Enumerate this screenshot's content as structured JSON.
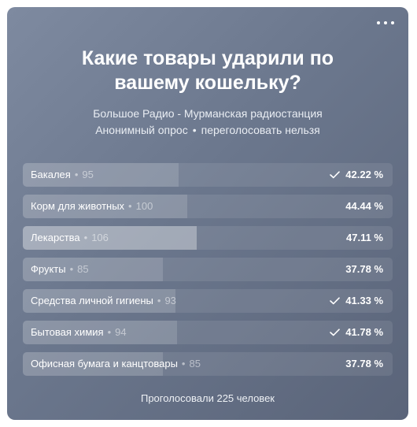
{
  "poll": {
    "title_line1": "Какие товары ударили по",
    "title_line2": "вашему кошельку?",
    "author": "Большое Радио - Мурманская радиостанция",
    "type": "Анонимный опрос",
    "revote": "переголосовать нельзя",
    "meta_separator": "•",
    "total_votes": "Проголосовали 225 человек",
    "options": [
      {
        "label": "Бакалея",
        "count": "95",
        "percent": "42.22 %",
        "share": 0.4222,
        "voted": true,
        "leader": false
      },
      {
        "label": "Корм для животных",
        "count": "100",
        "percent": "44.44 %",
        "share": 0.4444,
        "voted": false,
        "leader": false
      },
      {
        "label": "Лекарства",
        "count": "106",
        "percent": "47.11 %",
        "share": 0.4711,
        "voted": false,
        "leader": true
      },
      {
        "label": "Фрукты",
        "count": "85",
        "percent": "37.78 %",
        "share": 0.3778,
        "voted": false,
        "leader": false
      },
      {
        "label": "Средства личной гигиены",
        "count": "93",
        "percent": "41.33 %",
        "share": 0.4133,
        "voted": true,
        "leader": false
      },
      {
        "label": "Бытовая химия",
        "count": "94",
        "percent": "41.78 %",
        "share": 0.4178,
        "voted": true,
        "leader": false
      },
      {
        "label": "Офисная бумага и канцтовары",
        "count": "85",
        "percent": "37.78 %",
        "share": 0.3778,
        "voted": false,
        "leader": false
      }
    ]
  },
  "icons": {
    "more": "more-horizontal-icon",
    "check": "check-icon"
  },
  "colors": {
    "card_gradient_start": "#7e8aa0",
    "card_gradient_end": "#5a6479",
    "text": "#ffffff"
  }
}
